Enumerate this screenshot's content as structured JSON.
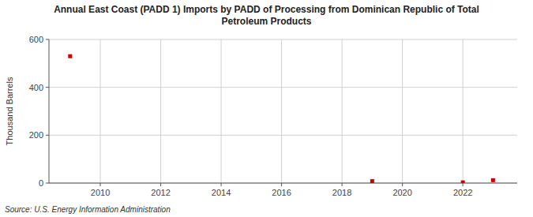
{
  "chart_data": {
    "type": "scatter",
    "title": "Annual East Coast (PADD 1) Imports by PADD of Processing from Dominican Republic of Total\nPetroleum Products",
    "y_label": "Thousand Barrels",
    "source": "Source: U.S. Energy Information Administration",
    "x": [
      2009,
      2019,
      2022,
      2023
    ],
    "values": [
      530,
      8,
      3,
      12
    ],
    "color": "#cc0000",
    "marker": "square",
    "xlim": [
      2008.3,
      2023.8
    ],
    "ylim": [
      0,
      600
    ],
    "xticks": [
      2010,
      2012,
      2014,
      2016,
      2018,
      2020,
      2022
    ],
    "yticks": [
      0,
      200,
      400,
      600
    ],
    "grid": true
  }
}
